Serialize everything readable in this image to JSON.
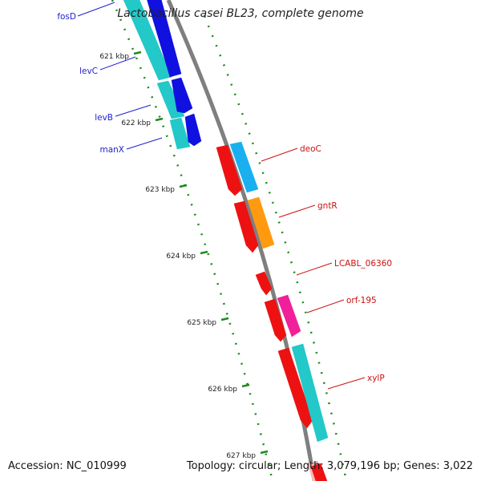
{
  "title": "Lactobacillus casei BL23, complete genome",
  "footer": {
    "accession": "Accession: NC_010999",
    "summary": "Topology: circular; Length: 3,079,196 bp; Genes: 3,022"
  },
  "colors": {
    "backbone": "#7f7f7f",
    "tick": "#1e8a1e",
    "left_label": "#1f1fcf",
    "right_label": "#cc1111",
    "cyan": "#23c8c8",
    "blue": "#1010e0",
    "red": "#ee1111",
    "sky": "#1ab0f0",
    "orange": "#ff9a10",
    "pink": "#f0209a"
  },
  "kbp_labels": [
    "621 kbp",
    "622 kbp",
    "623 kbp",
    "624 kbp",
    "625 kbp",
    "626 kbp",
    "627 kbp"
  ],
  "genes_left": [
    {
      "name": "fosD"
    },
    {
      "name": "levC"
    },
    {
      "name": "levB"
    },
    {
      "name": "manX"
    }
  ],
  "genes_right": [
    {
      "name": "deoC"
    },
    {
      "name": "gntR"
    },
    {
      "name": "LCABL_06360"
    },
    {
      "name": "orf-195"
    },
    {
      "name": "xylP"
    }
  ]
}
